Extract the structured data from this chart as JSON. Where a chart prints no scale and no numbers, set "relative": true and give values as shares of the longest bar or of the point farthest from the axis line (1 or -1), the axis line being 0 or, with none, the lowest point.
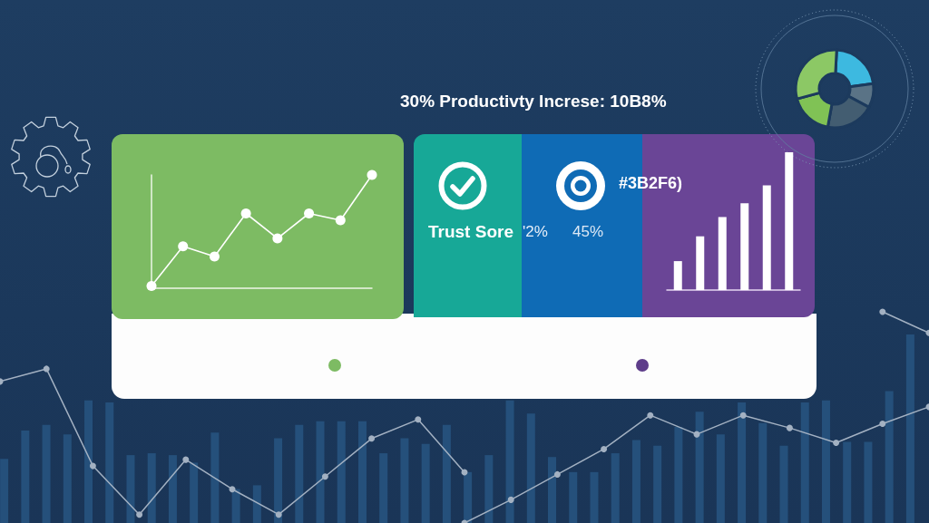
{
  "chart_data": [
    {
      "type": "other",
      "title": "30% Productivty Increse: 10B8%",
      "annotations": [
        "Trust Sore",
        "'2%",
        "45%",
        "#3B2F6)"
      ]
    },
    {
      "type": "donut",
      "categories": [
        null,
        null,
        null,
        null,
        null
      ],
      "values": [
        22,
        10,
        20,
        18,
        30
      ],
      "colors": [
        "#3db9e0",
        "#5a7386",
        "#435d71",
        "#80c255",
        "#8cc865"
      ]
    },
    {
      "type": "line",
      "categories": [
        null,
        null,
        null,
        null,
        null,
        null,
        null,
        null
      ],
      "values": [
        0.02,
        0.37,
        0.28,
        0.66,
        0.44,
        0.66,
        0.6,
        1
      ],
      "color": "#ffffff",
      "relative": true,
      "marker": "circle"
    },
    {
      "type": "bar",
      "categories": [
        null,
        null,
        null,
        null,
        null,
        null
      ],
      "values": [
        0.21,
        0.39,
        0.53,
        0.63,
        0.76,
        1
      ],
      "color": "#ffffff",
      "relative": true
    },
    {
      "type": "bar",
      "categories": [
        null,
        null,
        null,
        null,
        null,
        null,
        null,
        null,
        null,
        null,
        null,
        null,
        null,
        null,
        null,
        null,
        null,
        null,
        null,
        null,
        null,
        null,
        null,
        null,
        null,
        null,
        null,
        null,
        null,
        null,
        null,
        null,
        null,
        null,
        null,
        null,
        null,
        null,
        null,
        null,
        null,
        null,
        null,
        null
      ],
      "values": [
        0.34,
        0.49,
        0.52,
        0.47,
        0.65,
        0.64,
        0.36,
        0.37,
        0.36,
        0.32,
        0.48,
        0.18,
        0.2,
        0.45,
        0.52,
        0.54,
        0.54,
        0.54,
        0.37,
        0.45,
        0.42,
        0.52,
        0.27,
        0.36,
        0.65,
        0.58,
        0.35,
        0.27,
        0.27,
        0.37,
        0.44,
        0.41,
        0.51,
        0.59,
        0.47,
        0.64,
        0.53,
        0.41,
        0.64,
        0.65,
        0.43,
        0.43,
        0.7,
        1
      ],
      "color": "#25507b",
      "relative": true
    },
    {
      "type": "line",
      "categories": [
        null,
        null,
        null,
        null,
        null,
        null,
        null,
        null,
        null,
        null,
        null,
        null,
        null,
        null,
        null,
        null,
        null,
        null,
        null,
        null,
        null
      ],
      "series": [
        {
          "color": "#a3b1c2",
          "values": [
            0.67,
            0.73,
            0.27,
            0.04,
            0.3,
            0.16,
            0.04,
            0.22,
            0.4,
            0.49,
            0.24,
            null,
            null,
            null,
            null,
            null,
            null,
            null,
            null,
            null,
            null
          ]
        },
        {
          "color": "#a3b1c2",
          "values": [
            null,
            null,
            null,
            null,
            null,
            null,
            null,
            null,
            null,
            null,
            0,
            0.11,
            0.23,
            0.35,
            0.51,
            0.42,
            0.51,
            0.45,
            0.38,
            0.47,
            0.55
          ]
        },
        {
          "color": "#a3b1c2",
          "values": [
            null,
            null,
            null,
            null,
            null,
            null,
            null,
            null,
            null,
            null,
            null,
            null,
            null,
            null,
            null,
            null,
            null,
            null,
            null,
            1,
            0.9
          ]
        }
      ],
      "relative": true,
      "marker": "circle"
    }
  ]
}
